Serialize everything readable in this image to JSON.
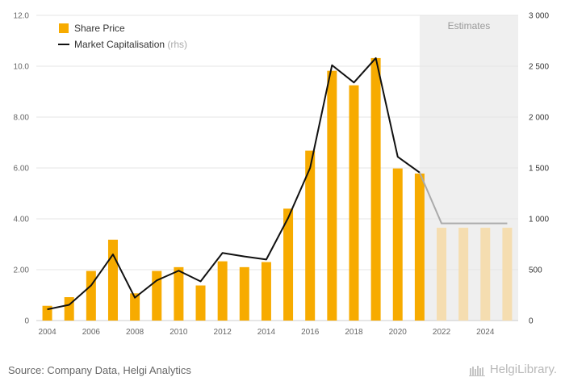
{
  "chart_data": {
    "type": "bar",
    "categories": [
      "2004",
      "2005",
      "2006",
      "2007",
      "2008",
      "2009",
      "2010",
      "2011",
      "2012",
      "2013",
      "2014",
      "2015",
      "2016",
      "2017",
      "2018",
      "2019",
      "2020",
      "2021",
      "2022",
      "2023",
      "2024",
      "2025"
    ],
    "x_tick_labels": [
      "2004",
      "2006",
      "2008",
      "2010",
      "2012",
      "2014",
      "2016",
      "2018",
      "2020",
      "2022",
      "2024"
    ],
    "series": [
      {
        "name": "Share Price",
        "type": "bar",
        "axis": "left",
        "values": [
          0.58,
          0.92,
          1.95,
          3.18,
          1.07,
          1.95,
          2.1,
          1.38,
          2.33,
          2.1,
          2.3,
          4.4,
          6.68,
          9.82,
          9.25,
          10.32,
          5.98,
          5.78,
          3.65,
          3.65,
          3.65,
          3.65
        ]
      },
      {
        "name": "Market Capitalisation",
        "name_suffix": "(rhs)",
        "type": "line",
        "axis": "right",
        "values": [
          110,
          155,
          345,
          650,
          225,
          395,
          490,
          385,
          665,
          630,
          600,
          1010,
          1500,
          2510,
          2340,
          2580,
          1610,
          1455,
          955,
          955,
          955,
          955
        ]
      }
    ],
    "estimates_from": "2022",
    "estimates_label": "Estimates",
    "ylim_left": [
      0,
      12
    ],
    "yticks_left": [
      "0",
      "2.00",
      "4.00",
      "6.00",
      "8.00",
      "10.0",
      "12.0"
    ],
    "ylim_right": [
      0,
      3000
    ],
    "yticks_right": [
      "0",
      "500",
      "1 000",
      "1 500",
      "2 000",
      "2 500",
      "3 000"
    ],
    "grid": true,
    "legend_position": "top-left",
    "colors": {
      "bar": "#f7ab00",
      "bar_estimate": "#f5ddb0",
      "line": "#111111",
      "line_estimate": "#aaaaaa",
      "estimate_band": "#efefef",
      "grid": "#e6e6e6",
      "axis_text": "#666666"
    }
  },
  "footer": {
    "source": "Source: Company Data, Helgi Analytics"
  },
  "logo": {
    "text": "HelgiLibrary."
  }
}
